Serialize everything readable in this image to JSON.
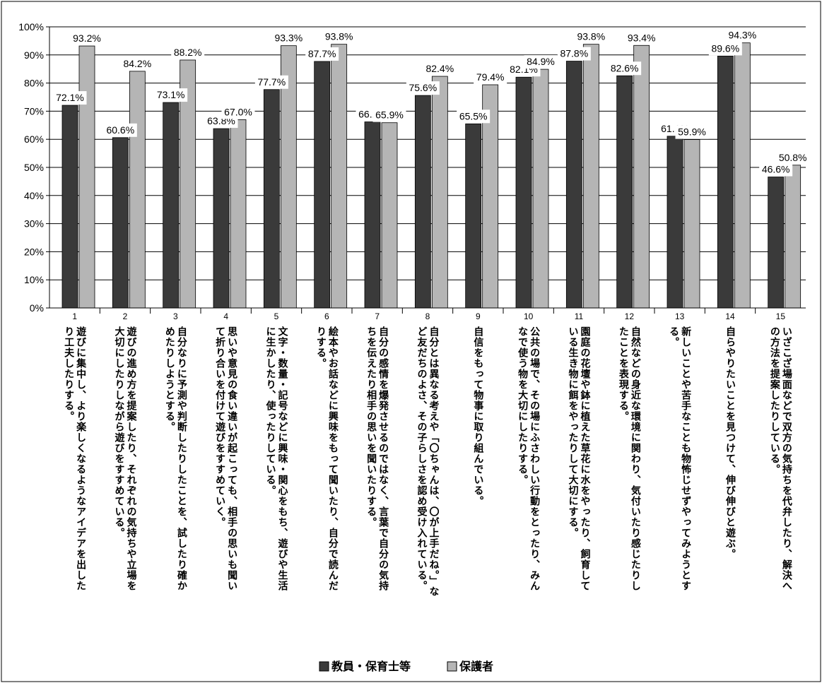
{
  "chart_data": {
    "type": "bar",
    "ylim": [
      0,
      100
    ],
    "yticks": [
      "0%",
      "10%",
      "20%",
      "30%",
      "40%",
      "50%",
      "60%",
      "70%",
      "80%",
      "90%",
      "100%"
    ],
    "grid": true,
    "legend_placement": "bottom",
    "colors": {
      "series1": "#3a3a3a",
      "series2": "#b5b5b5",
      "grid": "#000000"
    },
    "series": [
      {
        "name": "教員・保育士等",
        "values": [
          72.1,
          60.6,
          73.1,
          63.8,
          77.7,
          87.7,
          66.2,
          75.6,
          65.5,
          82.1,
          87.8,
          82.6,
          61.1,
          89.6,
          46.6
        ]
      },
      {
        "name": "保護者",
        "values": [
          93.2,
          84.2,
          88.2,
          67.0,
          93.3,
          93.8,
          65.9,
          82.4,
          79.4,
          84.9,
          93.8,
          93.4,
          59.9,
          94.3,
          50.8
        ]
      }
    ],
    "categories": [
      {
        "num": "1",
        "lines": [
          "遊びに集中し、より楽しくなるようなアイデアを出した",
          "り工夫したりする。"
        ]
      },
      {
        "num": "2",
        "lines": [
          "遊びの進め方を提案したり、それぞれの気持ちや立場を",
          "大切にしたりしながら遊びをすすめている。"
        ]
      },
      {
        "num": "3",
        "lines": [
          "自分なりに予測や判断したりしたことを、試したり確か",
          "めたりしようとする。"
        ]
      },
      {
        "num": "4",
        "lines": [
          "思いや意見の食い違いが起こっても、相手の思いも聞い",
          "て折り合いを付けて遊びをすすめていく。"
        ]
      },
      {
        "num": "5",
        "lines": [
          "文字・数量・記号などに興味・関心をもち、遊びや生活",
          "に生かしたり、使ったりしている。"
        ]
      },
      {
        "num": "6",
        "lines": [
          "絵本やお話などに興味をもって聞いたり、自分で読んだ",
          "りする。"
        ]
      },
      {
        "num": "7",
        "lines": [
          "自分の感情を爆発させるのではなく、言葉で自分の気持",
          "ちを伝えたり相手の思いを聞いたりする。"
        ]
      },
      {
        "num": "8",
        "lines": [
          "自分とは異なる考えや「〇ちゃんは、〇が上手だね。」な",
          "ど友だちのよさ、その子らしさを認め受け入れている。"
        ]
      },
      {
        "num": "9",
        "lines": [
          "自信をもって物事に取り組んでいる。"
        ]
      },
      {
        "num": "10",
        "lines": [
          "公共の場で、その場にふさわしい行動をとったり、みん",
          "なで使う物を大切にしたりする。"
        ]
      },
      {
        "num": "11",
        "lines": [
          "園庭の花壇や鉢に植えた草花に水をやったり、飼育して",
          "いる生き物に餌をやったりして大切にする。"
        ]
      },
      {
        "num": "12",
        "lines": [
          "自然などの身近な環境に関わり、気付いたり感じたりし",
          "たことを表現する。"
        ]
      },
      {
        "num": "13",
        "lines": [
          "新しいことや苦手なことも物怖じせずやってみようとす",
          "る。"
        ]
      },
      {
        "num": "14",
        "lines": [
          "自らやりたいことを見つけて、伸び伸びと遊ぶ。"
        ]
      },
      {
        "num": "15",
        "lines": [
          "いざこざ場面などで双方の気持ちを代弁したり、解決へ",
          "の方法を提案したりしている。"
        ]
      }
    ],
    "labels1": [
      "72.1%",
      "60.6%",
      "73.1%",
      "63.8%",
      "77.7%",
      "87.7%",
      "66.2%",
      "75.6%",
      "65.5%",
      "82.1%",
      "87.8%",
      "82.6%",
      "61.1%",
      "89.6%",
      "46.6%"
    ],
    "labels2": [
      "93.2%",
      "84.2%",
      "88.2%",
      "67.0%",
      "93.3%",
      "93.8%",
      "65.9%",
      "82.4%",
      "79.4%",
      "84.9%",
      "93.8%",
      "93.4%",
      "59.9%",
      "94.3%",
      "50.8%"
    ]
  },
  "legend": {
    "items": [
      {
        "marker": "■",
        "label": "教員・保育士等"
      },
      {
        "marker": "□",
        "label": "保護者"
      }
    ]
  }
}
